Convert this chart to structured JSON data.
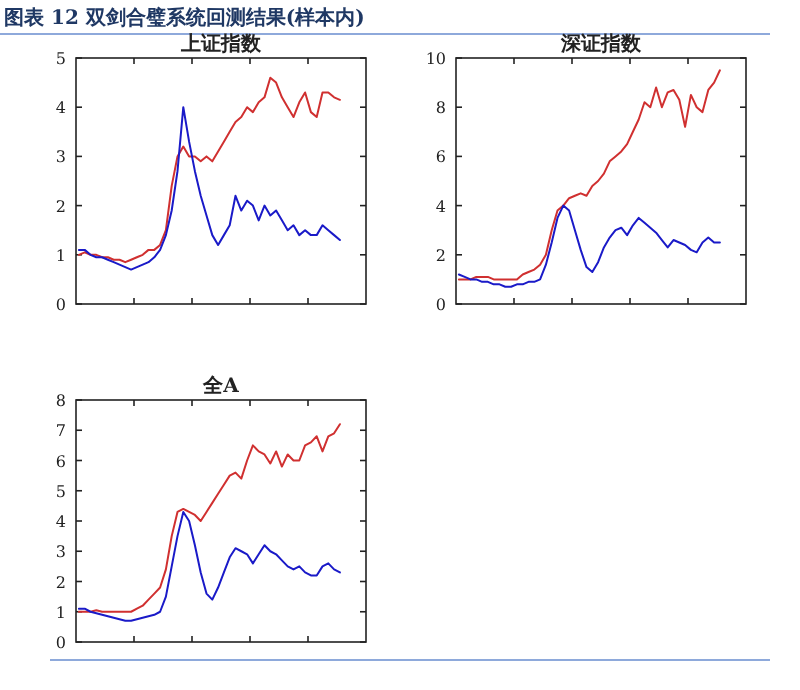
{
  "chart_data": [
    {
      "type": "line",
      "title": "上证指数",
      "annotations": [
        "图表 12 双剑合璧系统回测结果(样本内)"
      ],
      "categories": [
        null,
        null,
        null,
        null,
        null,
        null,
        null,
        null,
        null,
        null,
        null,
        null,
        null,
        null,
        null,
        null,
        null,
        null,
        null,
        null,
        null,
        null,
        null,
        null,
        null,
        null,
        null,
        null,
        null,
        null,
        null,
        null,
        null,
        null,
        null,
        null,
        null,
        null,
        null,
        null,
        null,
        null,
        null,
        null,
        null,
        null,
        null,
        null,
        null,
        null
      ],
      "ylim": [
        0,
        5
      ],
      "yticks": [
        0,
        1,
        2,
        3,
        4,
        5
      ],
      "tick_labels": "y",
      "series": [
        {
          "color": "#d03030",
          "values": [
            1.0,
            1.05,
            1.0,
            1.0,
            0.95,
            0.95,
            0.9,
            0.9,
            0.85,
            0.9,
            0.95,
            1.0,
            1.1,
            1.1,
            1.2,
            1.5,
            2.4,
            3.0,
            3.2,
            3.0,
            3.0,
            2.9,
            3.0,
            2.9,
            3.1,
            3.3,
            3.5,
            3.7,
            3.8,
            4.0,
            3.9,
            4.1,
            4.2,
            4.6,
            4.5,
            4.2,
            4.0,
            3.8,
            4.1,
            4.3,
            3.9,
            3.8,
            4.3,
            4.3,
            4.2,
            4.15,
            null,
            null,
            null,
            null
          ]
        },
        {
          "color": "#1a1ac8",
          "values": [
            1.1,
            1.1,
            1.0,
            0.95,
            0.95,
            0.9,
            0.85,
            0.8,
            0.75,
            0.7,
            0.75,
            0.8,
            0.85,
            0.95,
            1.1,
            1.4,
            1.9,
            2.7,
            4.0,
            3.3,
            2.7,
            2.2,
            1.8,
            1.4,
            1.2,
            1.4,
            1.6,
            2.2,
            1.9,
            2.1,
            2.0,
            1.7,
            2.0,
            1.8,
            1.9,
            1.7,
            1.5,
            1.6,
            1.4,
            1.5,
            1.4,
            1.4,
            1.6,
            1.5,
            1.4,
            1.3,
            null,
            null,
            null,
            null
          ]
        }
      ]
    },
    {
      "type": "line",
      "title": "深证指数",
      "categories": [
        null,
        null,
        null,
        null,
        null,
        null,
        null,
        null,
        null,
        null,
        null,
        null,
        null,
        null,
        null,
        null,
        null,
        null,
        null,
        null,
        null,
        null,
        null,
        null,
        null,
        null,
        null,
        null,
        null,
        null,
        null,
        null,
        null,
        null,
        null,
        null,
        null,
        null,
        null,
        null,
        null,
        null,
        null,
        null,
        null,
        null,
        null,
        null,
        null,
        null
      ],
      "ylim": [
        0,
        10
      ],
      "yticks": [
        0,
        2,
        4,
        6,
        8,
        10
      ],
      "tick_labels": "y",
      "series": [
        {
          "color": "#d03030",
          "values": [
            1.0,
            1.0,
            1.0,
            1.1,
            1.1,
            1.1,
            1.0,
            1.0,
            1.0,
            1.0,
            1.0,
            1.2,
            1.3,
            1.4,
            1.6,
            2.0,
            3.0,
            3.8,
            4.0,
            4.3,
            4.4,
            4.5,
            4.4,
            4.8,
            5.0,
            5.3,
            5.8,
            6.0,
            6.2,
            6.5,
            7.0,
            7.5,
            8.2,
            8.0,
            8.8,
            8.0,
            8.6,
            8.7,
            8.3,
            7.2,
            8.5,
            8.0,
            7.8,
            8.7,
            9.0,
            9.5,
            null,
            null,
            null,
            null
          ]
        },
        {
          "color": "#1a1ac8",
          "values": [
            1.2,
            1.1,
            1.0,
            1.0,
            0.9,
            0.9,
            0.8,
            0.8,
            0.7,
            0.7,
            0.8,
            0.8,
            0.9,
            0.9,
            1.0,
            1.6,
            2.5,
            3.5,
            4.0,
            3.8,
            3.0,
            2.2,
            1.5,
            1.3,
            1.7,
            2.3,
            2.7,
            3.0,
            3.1,
            2.8,
            3.2,
            3.5,
            3.3,
            3.1,
            2.9,
            2.6,
            2.3,
            2.6,
            2.5,
            2.4,
            2.2,
            2.1,
            2.5,
            2.7,
            2.5,
            2.5,
            null,
            null,
            null,
            null
          ]
        }
      ]
    },
    {
      "type": "line",
      "title": "全A",
      "categories": [
        null,
        null,
        null,
        null,
        null,
        null,
        null,
        null,
        null,
        null,
        null,
        null,
        null,
        null,
        null,
        null,
        null,
        null,
        null,
        null,
        null,
        null,
        null,
        null,
        null,
        null,
        null,
        null,
        null,
        null,
        null,
        null,
        null,
        null,
        null,
        null,
        null,
        null,
        null,
        null,
        null,
        null,
        null,
        null,
        null,
        null,
        null,
        null,
        null,
        null
      ],
      "ylim": [
        0,
        8
      ],
      "yticks": [
        0,
        1,
        2,
        3,
        4,
        5,
        6,
        7,
        8
      ],
      "tick_labels": "y",
      "series": [
        {
          "color": "#d03030",
          "values": [
            1.0,
            1.0,
            1.0,
            1.05,
            1.0,
            1.0,
            1.0,
            1.0,
            1.0,
            1.0,
            1.1,
            1.2,
            1.4,
            1.6,
            1.8,
            2.4,
            3.5,
            4.3,
            4.4,
            4.3,
            4.2,
            4.0,
            4.3,
            4.6,
            4.9,
            5.2,
            5.5,
            5.6,
            5.4,
            6.0,
            6.5,
            6.3,
            6.2,
            5.9,
            6.3,
            5.8,
            6.2,
            6.0,
            6.0,
            6.5,
            6.6,
            6.8,
            6.3,
            6.8,
            6.9,
            7.2,
            null,
            null,
            null,
            null
          ]
        },
        {
          "color": "#1a1ac8",
          "values": [
            1.1,
            1.1,
            1.0,
            0.95,
            0.9,
            0.85,
            0.8,
            0.75,
            0.7,
            0.7,
            0.75,
            0.8,
            0.85,
            0.9,
            1.0,
            1.5,
            2.5,
            3.5,
            4.3,
            4.0,
            3.2,
            2.3,
            1.6,
            1.4,
            1.8,
            2.3,
            2.8,
            3.1,
            3.0,
            2.9,
            2.6,
            2.9,
            3.2,
            3.0,
            2.9,
            2.7,
            2.5,
            2.4,
            2.5,
            2.3,
            2.2,
            2.2,
            2.5,
            2.6,
            2.4,
            2.3,
            null,
            null,
            null,
            null
          ]
        }
      ]
    }
  ]
}
